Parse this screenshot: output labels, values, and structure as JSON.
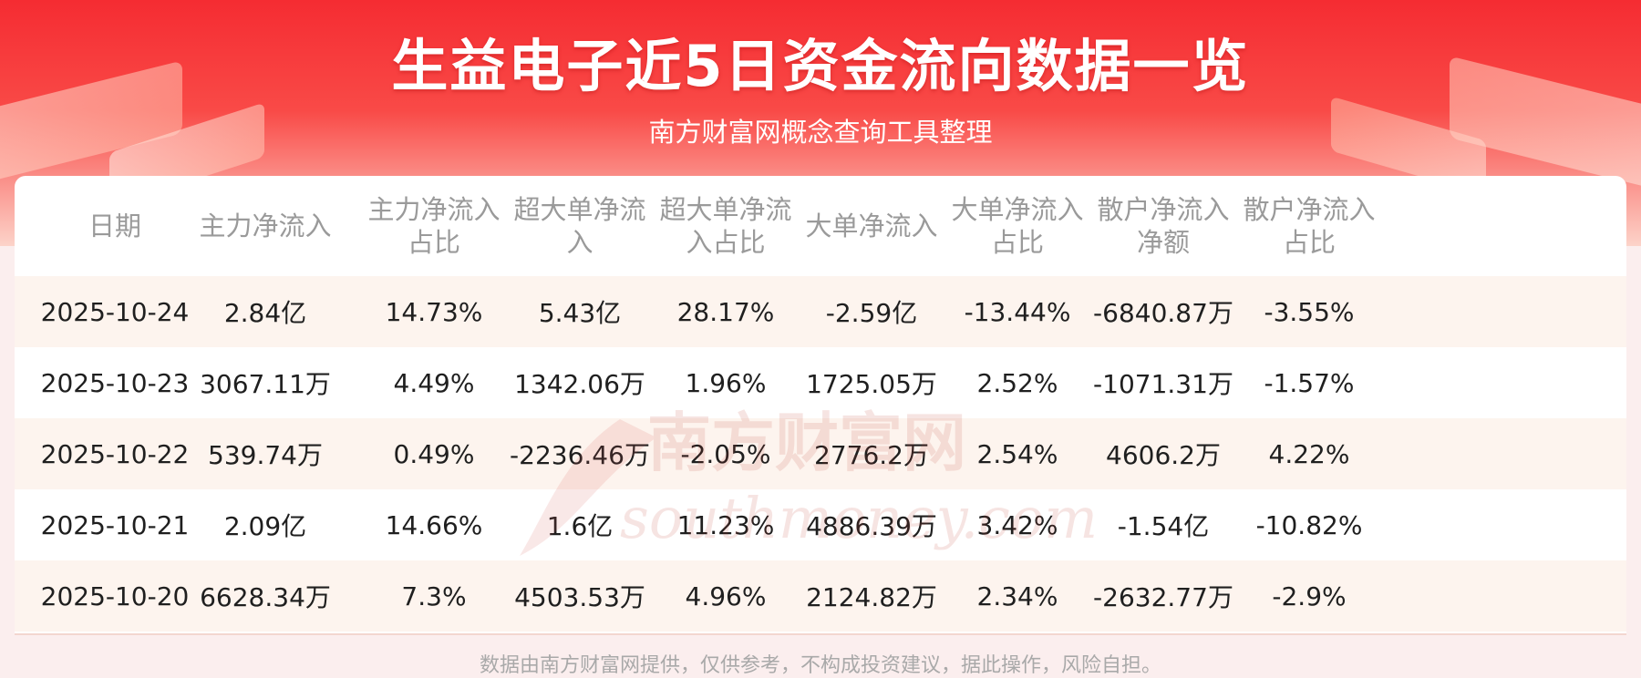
{
  "header": {
    "title": "生益电子近5日资金流向数据一览",
    "subtitle": "南方财富网概念查询工具整理"
  },
  "chart_data": {
    "type": "table",
    "columns": [
      "日期",
      "主力净流入",
      "主力净流入\n占比",
      "超大单净流\n入",
      "超大单净流\n入占比",
      "大单净流入",
      "大单净流入\n占比",
      "散户净流入\n净额",
      "散户净流入\n占比"
    ],
    "rows": [
      [
        "2025-10-24",
        "2.84亿",
        "14.73%",
        "5.43亿",
        "28.17%",
        "-2.59亿",
        "-13.44%",
        "-6840.87万",
        "-3.55%"
      ],
      [
        "2025-10-23",
        "3067.11万",
        "4.49%",
        "1342.06万",
        "1.96%",
        "1725.05万",
        "2.52%",
        "-1071.31万",
        "-1.57%"
      ],
      [
        "2025-10-22",
        "539.74万",
        "0.49%",
        "-2236.46万",
        "-2.05%",
        "2776.2万",
        "2.54%",
        "4606.2万",
        "4.22%"
      ],
      [
        "2025-10-21",
        "2.09亿",
        "14.66%",
        "1.6亿",
        "11.23%",
        "4886.39万",
        "3.42%",
        "-1.54亿",
        "-10.82%"
      ],
      [
        "2025-10-20",
        "6628.34万",
        "7.3%",
        "4503.53万",
        "4.96%",
        "2124.82万",
        "2.34%",
        "-2632.77万",
        "-2.9%"
      ]
    ]
  },
  "watermark": {
    "brand_cn": "南方财富网",
    "brand_en": "southmoney.com"
  },
  "footer": {
    "disclaimer": "数据由南方财富网提供，仅供参考，不构成投资建议，据此操作，风险自担。"
  },
  "colors": {
    "banner_red": "#f52c32",
    "row_alt": "#fdf4ee",
    "watermark": "#c0392b"
  }
}
